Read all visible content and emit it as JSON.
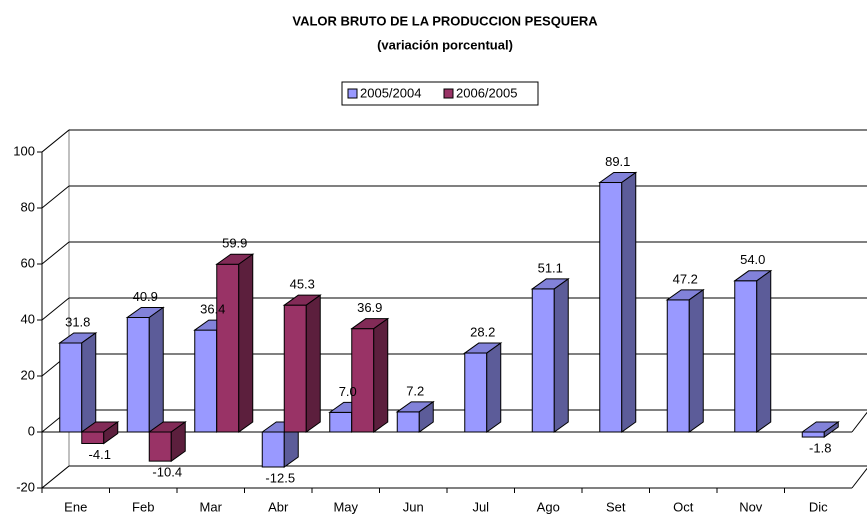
{
  "chart_data": {
    "type": "bar3d",
    "title": "VALOR BRUTO DE LA PRODUCCION PESQUERA",
    "subtitle": "(variación porcentual)",
    "categories": [
      "Ene",
      "Feb",
      "Mar",
      "Abr",
      "May",
      "Jun",
      "Jul",
      "Ago",
      "Set",
      "Oct",
      "Nov",
      "Dic"
    ],
    "series": [
      {
        "name": "2005/2004",
        "color": "#9999ff",
        "values": [
          31.8,
          40.9,
          36.4,
          -12.5,
          7.0,
          7.2,
          28.2,
          51.1,
          89.1,
          47.2,
          54.0,
          -1.8
        ],
        "value_labels": [
          "31.8",
          "40.9",
          "36.4",
          "-12.5",
          "7.0",
          "7.2",
          "28.2",
          "51.1",
          "89.1",
          "47.2",
          "54.0",
          "-1.8"
        ]
      },
      {
        "name": "2006/2005",
        "color": "#993366",
        "values": [
          -4.1,
          -10.4,
          59.9,
          45.3,
          36.9,
          null,
          null,
          null,
          null,
          null,
          null,
          null
        ],
        "value_labels": [
          "-4.1",
          "-10.4",
          "59.9",
          "45.3",
          "36.9",
          null,
          null,
          null,
          null,
          null,
          null,
          null
        ]
      }
    ],
    "ylim": [
      -20,
      100
    ],
    "yticks": [
      -20,
      0,
      20,
      40,
      60,
      80,
      100
    ],
    "grid": true,
    "legend": "top"
  }
}
